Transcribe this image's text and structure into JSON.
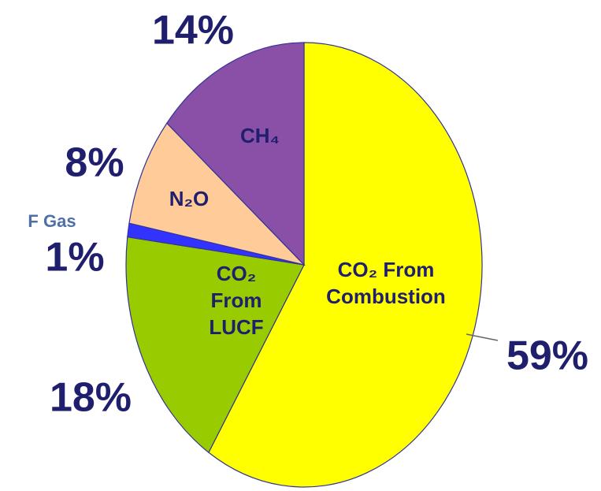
{
  "chart_data": {
    "type": "pie",
    "categories": [
      "CO₂ From Combustion",
      "CO₂ From LUCF",
      "F Gas",
      "N₂O",
      "CH₄"
    ],
    "values": [
      59,
      18,
      1,
      8,
      14
    ],
    "value_labels": [
      "59%",
      "18%",
      "1%",
      "8%",
      "14%"
    ],
    "colors": [
      "#ffff00",
      "#99cc00",
      "#3333ff",
      "#ffcc99",
      "#8a4fa6"
    ]
  }
}
